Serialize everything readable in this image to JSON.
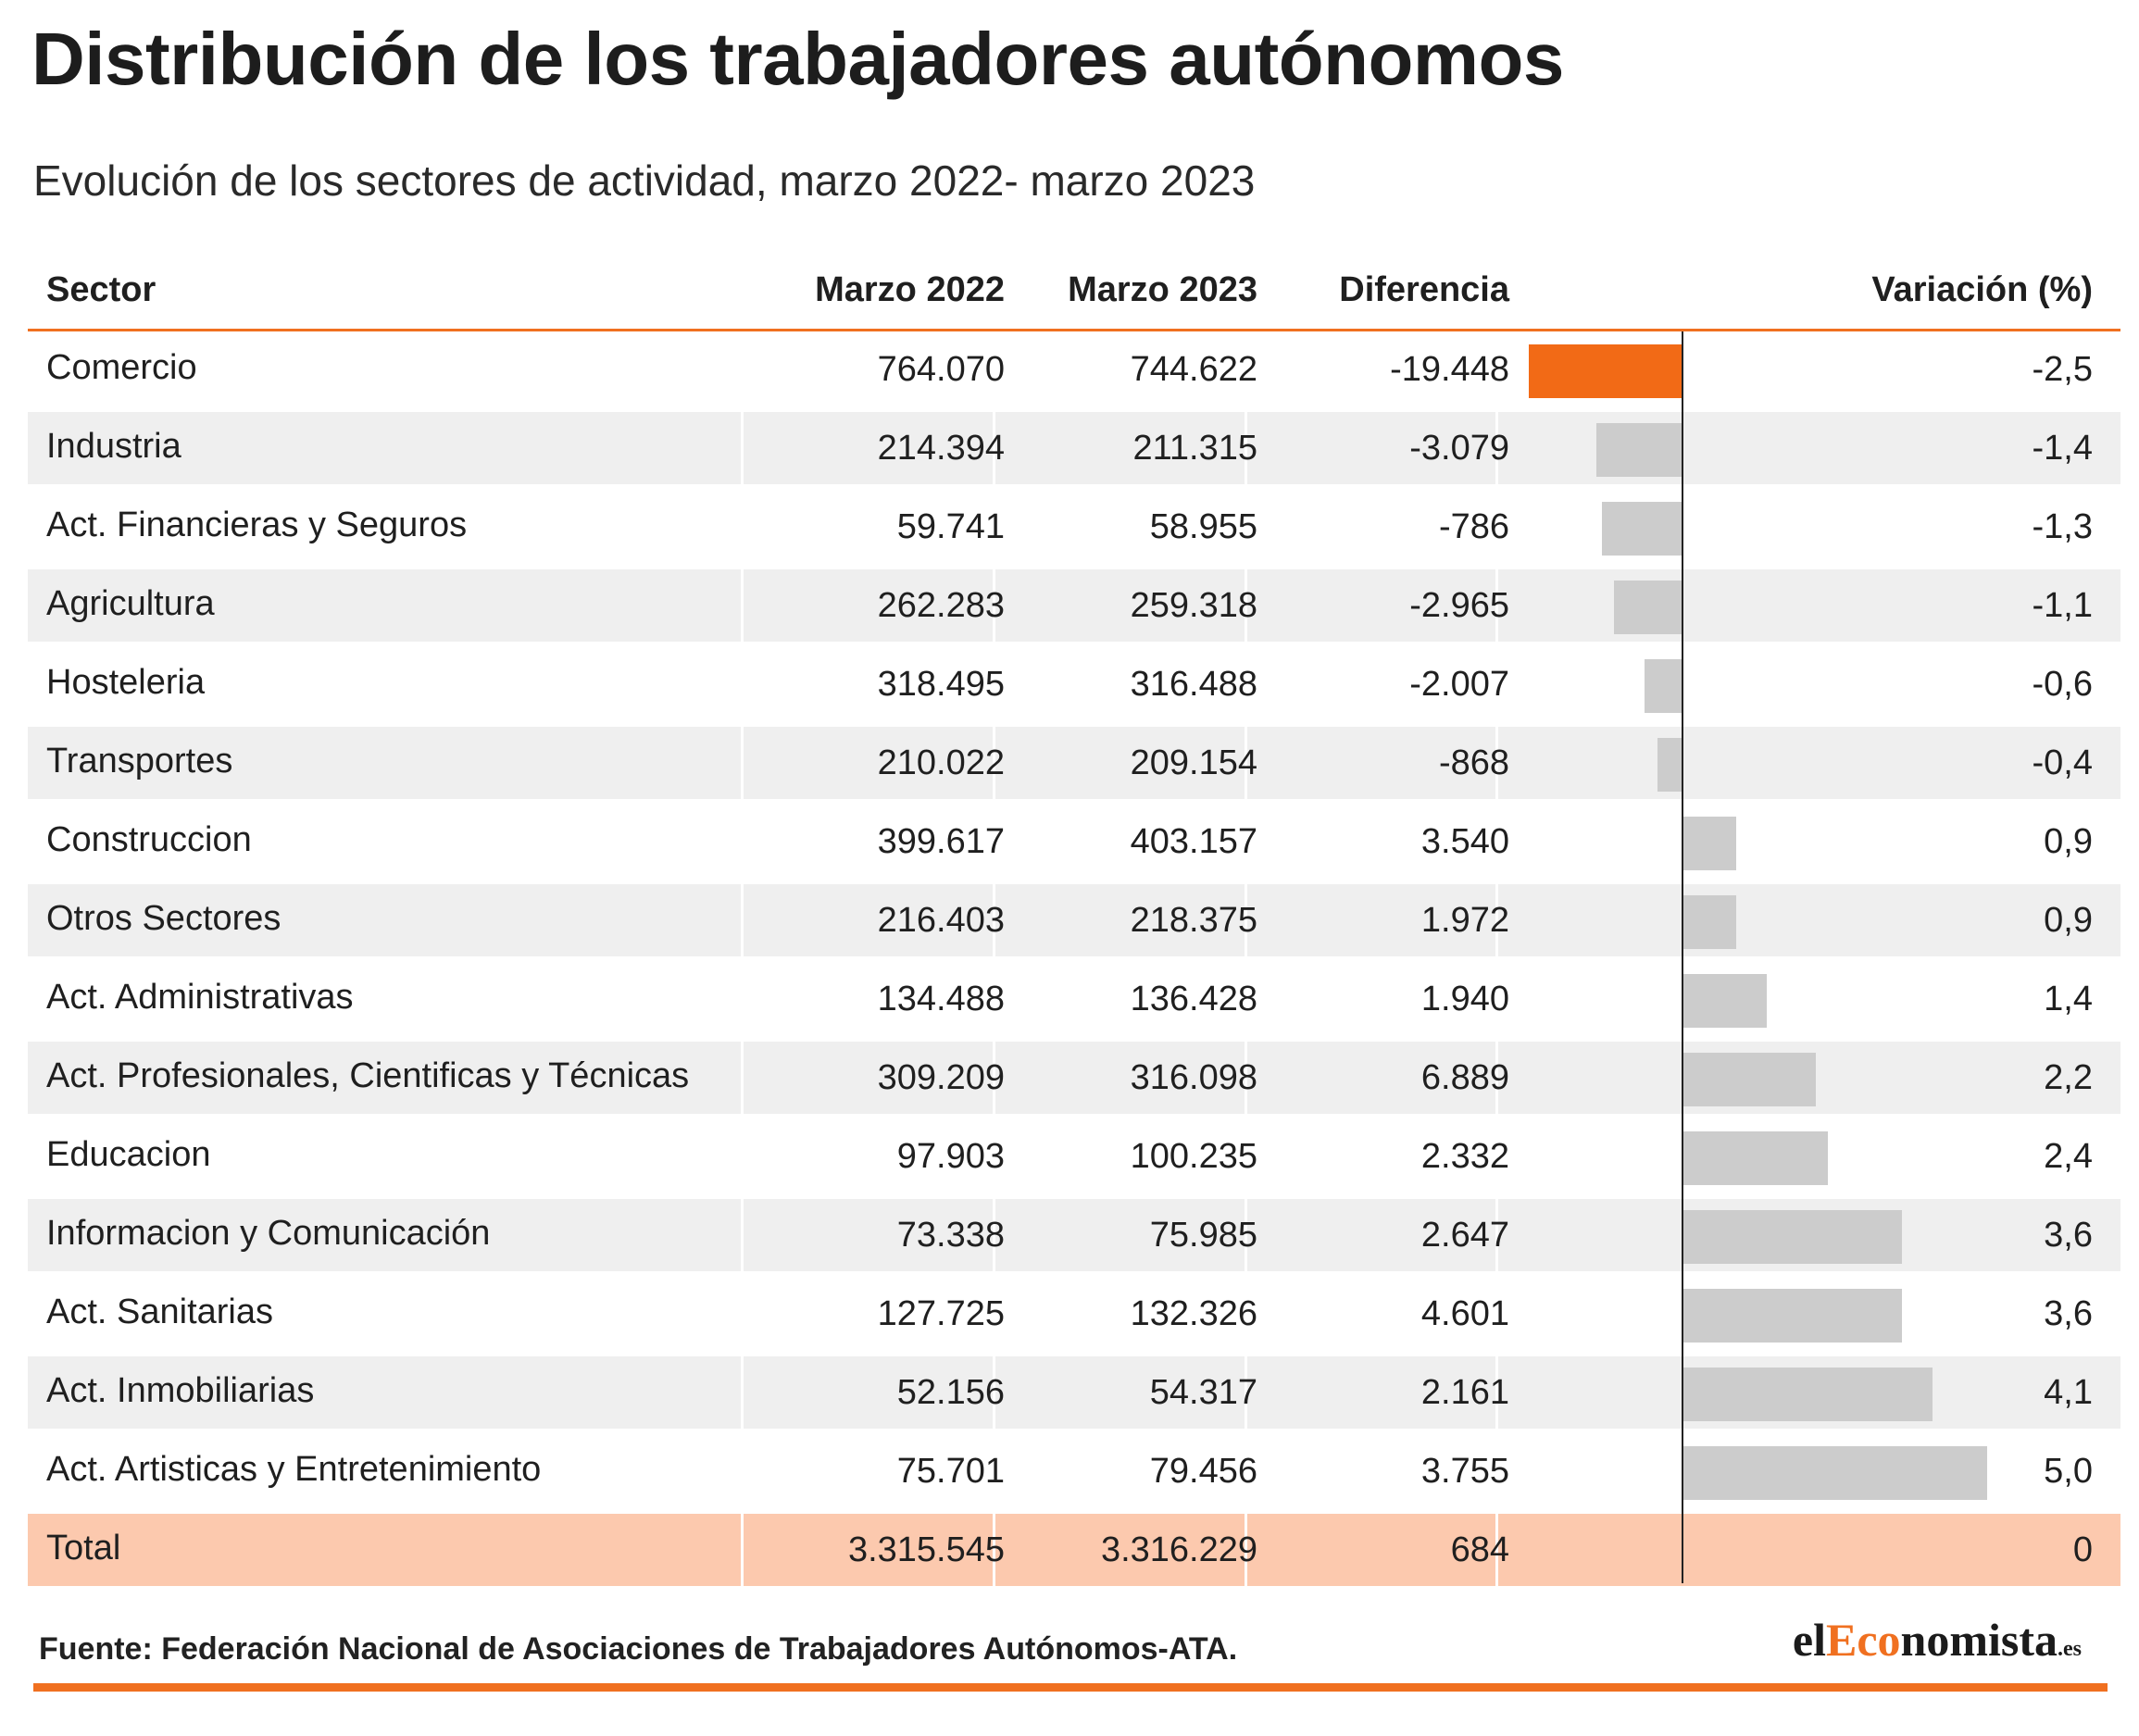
{
  "title": "Distribución de los trabajadores autónomos",
  "subtitle": "Evolución de los sectores de actividad, marzo 2022- marzo 2023",
  "columns": {
    "sector": "Sector",
    "m2022": "Marzo 2022",
    "m2023": "Marzo 2023",
    "diff": "Diferencia",
    "variation": "Variación (%)"
  },
  "source": "Fuente: Federación Nacional de Asociaciones de Trabajadores Autónomos-ATA.",
  "logo": {
    "prefix": "el",
    "accent": "Eco",
    "suffix": "nomista",
    "domain": ".es"
  },
  "colors": {
    "accent": "#f07020",
    "highlight_bar": "#f26a16",
    "neutral_bar": "#cccccc",
    "stripe": "#efefef",
    "total_row": "#fcc9ae"
  },
  "chart_data": {
    "type": "table",
    "x_range": [
      -2.5,
      5.0
    ],
    "rows": [
      {
        "sector": "Comercio",
        "m2022": "764.070",
        "m2023": "744.622",
        "diff": "-19.448",
        "variation_label": "-2,5",
        "variation": -2.5,
        "highlight": true
      },
      {
        "sector": "Industria",
        "m2022": "214.394",
        "m2023": "211.315",
        "diff": "-3.079",
        "variation_label": "-1,4",
        "variation": -1.4
      },
      {
        "sector": "Act. Financieras y Seguros",
        "m2022": "59.741",
        "m2023": "58.955",
        "diff": "-786",
        "variation_label": "-1,3",
        "variation": -1.3
      },
      {
        "sector": "Agricultura",
        "m2022": "262.283",
        "m2023": "259.318",
        "diff": "-2.965",
        "variation_label": "-1,1",
        "variation": -1.1
      },
      {
        "sector": "Hosteleria",
        "m2022": "318.495",
        "m2023": "316.488",
        "diff": "-2.007",
        "variation_label": "-0,6",
        "variation": -0.6
      },
      {
        "sector": "Transportes",
        "m2022": "210.022",
        "m2023": "209.154",
        "diff": "-868",
        "variation_label": "-0,4",
        "variation": -0.4
      },
      {
        "sector": "Construccion",
        "m2022": "399.617",
        "m2023": "403.157",
        "diff": "3.540",
        "variation_label": "0,9",
        "variation": 0.9
      },
      {
        "sector": "Otros Sectores",
        "m2022": "216.403",
        "m2023": "218.375",
        "diff": "1.972",
        "variation_label": "0,9",
        "variation": 0.9
      },
      {
        "sector": "Act. Administrativas",
        "m2022": "134.488",
        "m2023": "136.428",
        "diff": "1.940",
        "variation_label": "1,4",
        "variation": 1.4
      },
      {
        "sector": "Act. Profesionales, Cientificas y Técnicas",
        "m2022": "309.209",
        "m2023": "316.098",
        "diff": "6.889",
        "variation_label": "2,2",
        "variation": 2.2
      },
      {
        "sector": "Educacion",
        "m2022": "97.903",
        "m2023": "100.235",
        "diff": "2.332",
        "variation_label": "2,4",
        "variation": 2.4
      },
      {
        "sector": "Informacion y Comunicación",
        "m2022": "73.338",
        "m2023": "75.985",
        "diff": "2.647",
        "variation_label": "3,6",
        "variation": 3.6
      },
      {
        "sector": "Act. Sanitarias",
        "m2022": "127.725",
        "m2023": "132.326",
        "diff": "4.601",
        "variation_label": "3,6",
        "variation": 3.6
      },
      {
        "sector": "Act. Inmobiliarias",
        "m2022": "52.156",
        "m2023": "54.317",
        "diff": "2.161",
        "variation_label": "4,1",
        "variation": 4.1
      },
      {
        "sector": "Act. Artisticas y Entretenimiento",
        "m2022": "75.701",
        "m2023": "79.456",
        "diff": "3.755",
        "variation_label": "5,0",
        "variation": 5.0
      }
    ],
    "total": {
      "sector": "Total",
      "m2022": "3.315.545",
      "m2023": "3.316.229",
      "diff": "684",
      "variation_label": "0",
      "variation": 0
    }
  }
}
